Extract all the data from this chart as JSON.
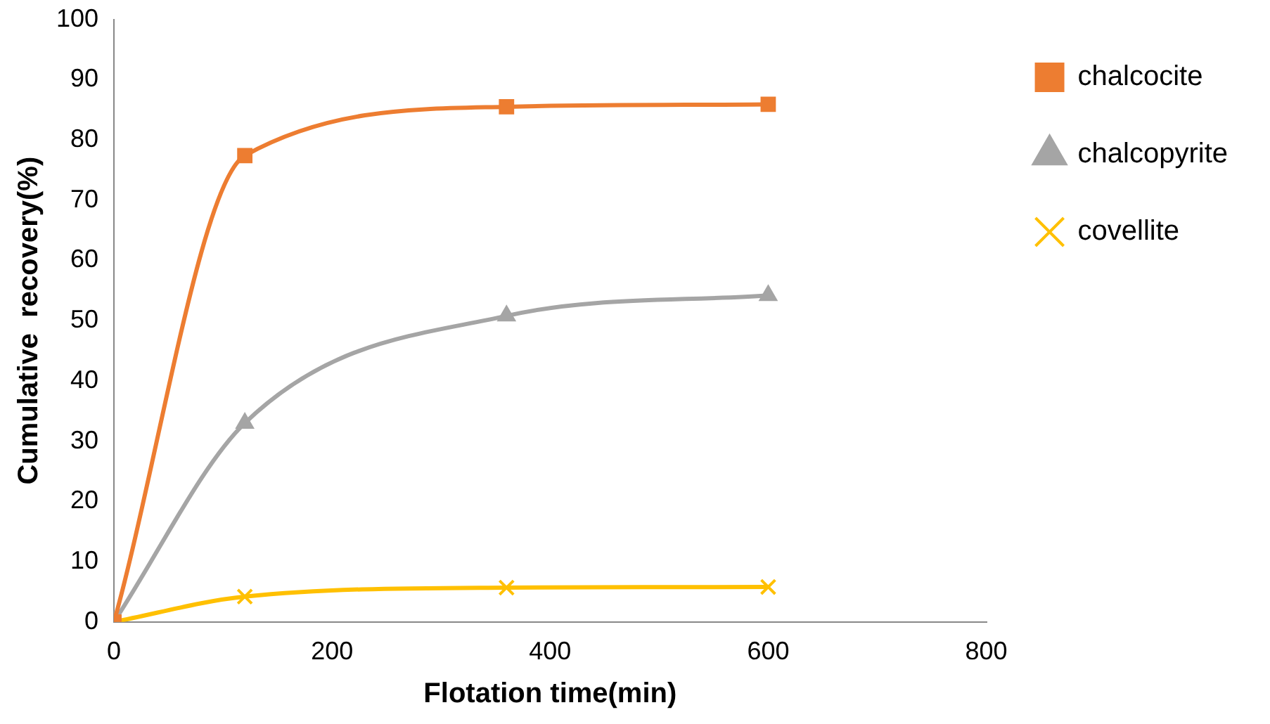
{
  "chart_data": {
    "type": "line",
    "xlabel": "Flotation time(min)",
    "ylabel": "Cumulative  recovery(%)",
    "x": [
      0,
      120,
      360,
      600
    ],
    "series": [
      {
        "name": "chalcocite",
        "color": "#ed7d31",
        "marker": "square",
        "values": [
          0,
          77.4,
          85.5,
          85.9
        ]
      },
      {
        "name": "chalcopyrite",
        "color": "#a5a5a5",
        "marker": "triangle",
        "values": [
          0,
          33,
          50.8,
          54.2
        ]
      },
      {
        "name": "covellite",
        "color": "#ffc000",
        "marker": "cross",
        "values": [
          0,
          4.2,
          5.7,
          5.8
        ]
      }
    ],
    "xlim": [
      0,
      800
    ],
    "xticks": [
      0,
      200,
      400,
      600,
      800
    ],
    "ylim": [
      0,
      100
    ],
    "yticks": [
      0,
      10,
      20,
      30,
      40,
      50,
      60,
      70,
      80,
      90,
      100
    ],
    "grid": false,
    "legend": "right",
    "line_style": "solid"
  }
}
